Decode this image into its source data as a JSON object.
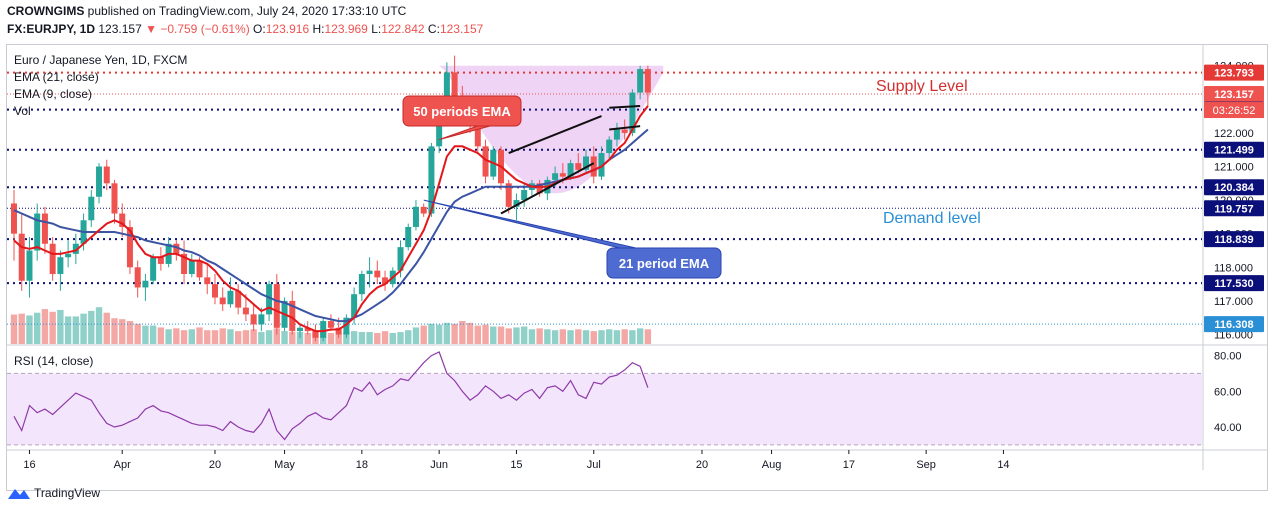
{
  "header": {
    "publisher": "CROWNGIMS",
    "published_text": "published on TradingView.com, July 24, 2020 17:33:10 UTC",
    "symbol": "FX:EURJPY, 1D",
    "price": "123.157",
    "change": "▼ −0.759 (−0.61%)",
    "ohlc": {
      "O": "123.916",
      "H": "123.969",
      "L": "122.842",
      "C": "123.157"
    }
  },
  "legend": {
    "instrument": "Euro / Japanese Yen, 1D, FXCM",
    "ema21": "EMA (21, close)",
    "ema9": "EMA (9, close)",
    "vol": "Vol",
    "rsi": "RSI (14, close)"
  },
  "annotations": {
    "supply": "Supply Level",
    "demand": "Demand level",
    "ema50_box": "50 periods EMA",
    "ema21_box": "21 period EMA"
  },
  "footer": {
    "brand": "TradingView"
  },
  "colors": {
    "up": "#26a69a",
    "down": "#ef5350",
    "ema9": "#e3171b",
    "ema21": "#3b54a3",
    "level": "#0b0f7a",
    "supply_text": "#d32f2f",
    "demand_text": "#2b8fd6",
    "rsi_line": "#8e3aa8",
    "cup_fill": "#e9c6f1"
  },
  "chart_data": {
    "type": "candlestick",
    "price_axis_ticks": [
      "116.000",
      "117.000",
      "118.000",
      "119.000",
      "120.000",
      "121.000",
      "122.000",
      "123.000",
      "124.000"
    ],
    "x_labels": [
      {
        "label": "16",
        "i": 2
      },
      {
        "label": "Apr",
        "i": 14
      },
      {
        "label": "20",
        "i": 26
      },
      {
        "label": "May",
        "i": 35
      },
      {
        "label": "18",
        "i": 45
      },
      {
        "label": "Jun",
        "i": 55
      },
      {
        "label": "15",
        "i": 65
      },
      {
        "label": "Jul",
        "i": 75
      },
      {
        "label": "20",
        "i": 89
      },
      {
        "label": "Aug",
        "i": 98
      },
      {
        "label": "17",
        "i": 108
      },
      {
        "label": "Sep",
        "i": 118
      },
      {
        "label": "14",
        "i": 128
      }
    ],
    "levels": [
      {
        "value": 123.793,
        "label": "123.793",
        "color": "#e53935",
        "style": "dot"
      },
      {
        "value": 123.157,
        "label": "123.157",
        "color": "#ef5350",
        "style": "thin"
      },
      {
        "value": 122.694,
        "label": "122.694",
        "color": "#0b0f7a",
        "style": "dot"
      },
      {
        "value": 121.499,
        "label": "121.499",
        "color": "#0b0f7a",
        "style": "dot"
      },
      {
        "value": 120.384,
        "label": "120.384",
        "color": "#0b0f7a",
        "style": "dot"
      },
      {
        "value": 119.757,
        "label": "119.757",
        "color": "#0b0f7a",
        "style": "thin"
      },
      {
        "value": 118.839,
        "label": "118.839",
        "color": "#0b0f7a",
        "style": "dot"
      },
      {
        "value": 117.53,
        "label": "117.530",
        "color": "#0b0f7a",
        "style": "dot"
      },
      {
        "value": 116.308,
        "label": "116.308",
        "color": "#2b8fd6",
        "style": "thin"
      }
    ],
    "countdown": "03:26:52",
    "candles": [
      [
        119.9,
        120.3,
        118.2,
        119.0
      ],
      [
        119.0,
        119.6,
        117.3,
        117.6
      ],
      [
        117.6,
        118.9,
        117.1,
        118.5
      ],
      [
        118.5,
        119.9,
        118.2,
        119.6
      ],
      [
        119.6,
        119.8,
        118.4,
        118.7
      ],
      [
        118.7,
        118.9,
        117.6,
        117.8
      ],
      [
        117.8,
        118.5,
        117.3,
        118.3
      ],
      [
        118.3,
        118.8,
        118.0,
        118.4
      ],
      [
        118.4,
        119.0,
        118.1,
        118.7
      ],
      [
        118.7,
        119.6,
        118.5,
        119.4
      ],
      [
        119.4,
        120.3,
        119.2,
        120.1
      ],
      [
        120.1,
        121.1,
        119.9,
        121.0
      ],
      [
        121.0,
        121.2,
        120.3,
        120.5
      ],
      [
        120.5,
        120.6,
        119.3,
        119.6
      ],
      [
        119.6,
        119.9,
        118.9,
        119.2
      ],
      [
        119.2,
        119.4,
        117.8,
        118.0
      ],
      [
        118.0,
        118.2,
        117.1,
        117.4
      ],
      [
        117.4,
        117.8,
        117.0,
        117.6
      ],
      [
        117.6,
        118.4,
        117.5,
        118.3
      ],
      [
        118.3,
        118.6,
        117.9,
        118.1
      ],
      [
        118.1,
        118.9,
        118.0,
        118.7
      ],
      [
        118.7,
        118.8,
        118.2,
        118.4
      ],
      [
        118.4,
        118.8,
        117.5,
        117.8
      ],
      [
        117.8,
        118.4,
        117.7,
        118.2
      ],
      [
        118.2,
        118.3,
        117.6,
        117.7
      ],
      [
        117.7,
        118.1,
        117.2,
        117.5
      ],
      [
        117.5,
        117.8,
        116.9,
        117.1
      ],
      [
        117.1,
        117.4,
        116.7,
        116.9
      ],
      [
        116.9,
        117.7,
        116.8,
        117.3
      ],
      [
        117.3,
        117.5,
        116.6,
        116.8
      ],
      [
        116.8,
        117.2,
        116.4,
        116.6
      ],
      [
        116.6,
        116.9,
        116.1,
        116.3
      ],
      [
        116.3,
        116.8,
        116.1,
        116.6
      ],
      [
        116.6,
        117.6,
        116.4,
        117.5
      ],
      [
        117.5,
        117.8,
        116.0,
        116.2
      ],
      [
        116.2,
        117.1,
        116.1,
        117.0
      ],
      [
        117.0,
        117.3,
        116.0,
        116.1
      ],
      [
        116.1,
        116.3,
        115.9,
        116.2
      ],
      [
        116.2,
        116.4,
        116.0,
        116.1
      ],
      [
        116.1,
        116.3,
        115.8,
        115.9
      ],
      [
        115.9,
        116.5,
        115.8,
        116.4
      ],
      [
        116.4,
        116.6,
        116.1,
        116.2
      ],
      [
        116.2,
        116.5,
        115.9,
        116.0
      ],
      [
        116.0,
        116.6,
        115.9,
        116.5
      ],
      [
        116.5,
        117.4,
        116.3,
        117.2
      ],
      [
        117.2,
        117.9,
        117.0,
        117.8
      ],
      [
        117.8,
        118.3,
        117.4,
        117.9
      ],
      [
        117.9,
        118.2,
        117.5,
        117.7
      ],
      [
        117.7,
        117.9,
        117.3,
        117.5
      ],
      [
        117.5,
        118.0,
        117.4,
        117.9
      ],
      [
        117.9,
        118.8,
        117.7,
        118.6
      ],
      [
        118.6,
        119.3,
        118.5,
        119.2
      ],
      [
        119.2,
        120.0,
        119.1,
        119.8
      ],
      [
        119.8,
        119.9,
        119.5,
        119.6
      ],
      [
        119.6,
        121.7,
        119.5,
        121.6
      ],
      [
        121.6,
        122.9,
        121.4,
        122.7
      ],
      [
        122.7,
        124.1,
        122.6,
        123.8
      ],
      [
        123.8,
        124.3,
        122.9,
        123.1
      ],
      [
        123.1,
        123.4,
        122.6,
        122.8
      ],
      [
        122.8,
        123.1,
        122.0,
        122.2
      ],
      [
        122.2,
        122.4,
        121.4,
        121.6
      ],
      [
        121.6,
        121.8,
        120.5,
        120.7
      ],
      [
        120.7,
        121.6,
        120.6,
        121.5
      ],
      [
        121.5,
        121.6,
        120.3,
        120.5
      ],
      [
        120.5,
        120.6,
        119.6,
        119.8
      ],
      [
        119.8,
        120.2,
        119.4,
        120.0
      ],
      [
        120.0,
        120.5,
        119.8,
        120.3
      ],
      [
        120.3,
        120.6,
        120.1,
        120.5
      ],
      [
        120.5,
        120.6,
        120.1,
        120.2
      ],
      [
        120.2,
        120.7,
        120.0,
        120.6
      ],
      [
        120.6,
        121.0,
        120.4,
        120.8
      ],
      [
        120.8,
        121.1,
        120.5,
        120.7
      ],
      [
        120.7,
        121.2,
        120.6,
        121.1
      ],
      [
        121.1,
        121.4,
        120.8,
        120.9
      ],
      [
        120.9,
        121.5,
        120.8,
        121.3
      ],
      [
        121.3,
        121.6,
        120.5,
        120.7
      ],
      [
        120.7,
        121.6,
        120.6,
        121.4
      ],
      [
        121.4,
        121.9,
        121.2,
        121.8
      ],
      [
        121.8,
        122.3,
        121.6,
        122.1
      ],
      [
        122.1,
        122.4,
        121.8,
        122.0
      ],
      [
        122.0,
        123.3,
        121.9,
        123.2
      ],
      [
        123.2,
        124.0,
        123.0,
        123.9
      ],
      [
        123.9,
        124.0,
        122.8,
        123.2
      ]
    ],
    "ema9_values": [
      118.8,
      118.6,
      118.55,
      118.6,
      118.5,
      118.4,
      118.4,
      118.45,
      118.5,
      118.7,
      118.9,
      119.1,
      119.3,
      119.4,
      119.3,
      119.1,
      118.7,
      118.4,
      118.3,
      118.3,
      118.4,
      118.4,
      118.3,
      118.2,
      118.2,
      118.1,
      117.9,
      117.6,
      117.4,
      117.3,
      117.1,
      116.9,
      116.7,
      116.8,
      116.7,
      116.6,
      116.5,
      116.3,
      116.2,
      116.1,
      116.1,
      116.15,
      116.15,
      116.3,
      116.5,
      116.9,
      117.2,
      117.4,
      117.5,
      117.7,
      117.9,
      118.3,
      118.7,
      119.1,
      119.7,
      120.5,
      121.3,
      121.6,
      121.6,
      121.5,
      121.4,
      121.2,
      121.1,
      121.0,
      120.8,
      120.6,
      120.5,
      120.4,
      120.4,
      120.4,
      120.5,
      120.6,
      120.65,
      120.7,
      120.8,
      120.9,
      121.0,
      121.2,
      121.5,
      121.7,
      122.1,
      122.5,
      122.8
    ],
    "ema21_values": [
      119.7,
      119.6,
      119.5,
      119.4,
      119.35,
      119.3,
      119.2,
      119.15,
      119.1,
      119.05,
      119.05,
      119.05,
      119.05,
      119.05,
      119.0,
      118.95,
      118.9,
      118.8,
      118.75,
      118.7,
      118.65,
      118.6,
      118.5,
      118.45,
      118.35,
      118.2,
      118.1,
      117.95,
      117.8,
      117.65,
      117.5,
      117.35,
      117.2,
      117.1,
      117.0,
      116.95,
      116.85,
      116.75,
      116.65,
      116.55,
      116.5,
      116.45,
      116.4,
      116.4,
      116.5,
      116.6,
      116.75,
      116.9,
      117.05,
      117.25,
      117.5,
      117.8,
      118.1,
      118.45,
      118.85,
      119.25,
      119.65,
      119.95,
      120.1,
      120.2,
      120.3,
      120.4,
      120.4,
      120.4,
      120.4,
      120.4,
      120.4,
      120.4,
      120.45,
      120.5,
      120.55,
      120.6,
      120.65,
      120.7,
      120.8,
      120.9,
      121.0,
      121.2,
      121.35,
      121.5,
      121.7,
      121.9,
      122.1
    ],
    "rsi_axis": [
      "40.00",
      "60.00",
      "80.00"
    ],
    "rsi_values": [
      46,
      38,
      52,
      48,
      50,
      47,
      51,
      55,
      59,
      57,
      55,
      48,
      42,
      40,
      41,
      43,
      45,
      50,
      52,
      49,
      48,
      46,
      44,
      42,
      41,
      41,
      40,
      38,
      43,
      40,
      38,
      37,
      42,
      50,
      38,
      33,
      39,
      42,
      46,
      48,
      45,
      44,
      48,
      52,
      62,
      60,
      65,
      58,
      61,
      63,
      67,
      66,
      71,
      76,
      80,
      82,
      70,
      66,
      60,
      55,
      58,
      63,
      60,
      56,
      58,
      55,
      59,
      61,
      56,
      62,
      63,
      60,
      66,
      58,
      56,
      65,
      64,
      68,
      69,
      72,
      76,
      74,
      62
    ],
    "volume_norm": [
      0.32,
      0.33,
      0.31,
      0.34,
      0.38,
      0.35,
      0.37,
      0.3,
      0.3,
      0.33,
      0.36,
      0.4,
      0.34,
      0.28,
      0.27,
      0.25,
      0.22,
      0.2,
      0.2,
      0.18,
      0.16,
      0.17,
      0.15,
      0.16,
      0.18,
      0.15,
      0.15,
      0.17,
      0.16,
      0.14,
      0.15,
      0.16,
      0.13,
      0.15,
      0.17,
      0.14,
      0.13,
      0.13,
      0.12,
      0.14,
      0.13,
      0.12,
      0.11,
      0.13,
      0.14,
      0.13,
      0.13,
      0.12,
      0.14,
      0.12,
      0.13,
      0.15,
      0.18,
      0.2,
      0.22,
      0.21,
      0.23,
      0.22,
      0.25,
      0.23,
      0.2,
      0.21,
      0.19,
      0.19,
      0.17,
      0.18,
      0.19,
      0.16,
      0.17,
      0.16,
      0.15,
      0.16,
      0.15,
      0.16,
      0.15,
      0.14,
      0.15,
      0.16,
      0.15,
      0.16,
      0.15,
      0.17,
      0.16
    ]
  }
}
